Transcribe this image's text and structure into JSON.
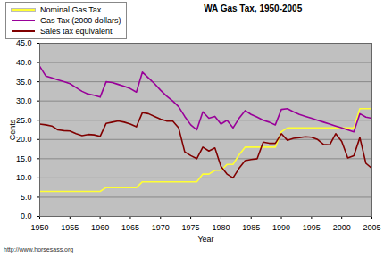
{
  "chart_data": {
    "type": "line",
    "title": "WA Gas Tax, 1950-2005",
    "x_label": "Year",
    "y_label": "Cents",
    "caption": "http://www.horsesass.org",
    "x": [
      1950,
      1951,
      1952,
      1953,
      1954,
      1955,
      1956,
      1957,
      1958,
      1959,
      1960,
      1961,
      1962,
      1963,
      1964,
      1965,
      1966,
      1967,
      1968,
      1969,
      1970,
      1971,
      1972,
      1973,
      1974,
      1975,
      1976,
      1977,
      1978,
      1979,
      1980,
      1981,
      1982,
      1983,
      1984,
      1985,
      1986,
      1987,
      1988,
      1989,
      1990,
      1991,
      1992,
      1993,
      1994,
      1995,
      1996,
      1997,
      1998,
      1999,
      2000,
      2001,
      2002,
      2003,
      2004,
      2005
    ],
    "xlim": [
      1950,
      2005
    ],
    "xticks": [
      1950,
      1955,
      1960,
      1965,
      1970,
      1975,
      1980,
      1985,
      1990,
      1995,
      2000,
      2005
    ],
    "ylim": [
      0,
      45
    ],
    "yticks": [
      {
        "value": 0,
        "label": "0.0"
      },
      {
        "value": 5,
        "label": "5.0"
      },
      {
        "value": 10,
        "label": "10.0"
      },
      {
        "value": 15,
        "label": "15.0"
      },
      {
        "value": 20,
        "label": "20.0"
      },
      {
        "value": 25,
        "label": "25.0"
      },
      {
        "value": 30,
        "label": "30.0"
      },
      {
        "value": 35,
        "label": "35.0"
      },
      {
        "value": 40,
        "label": "40.0"
      },
      {
        "value": 45,
        "label": "45.0"
      }
    ],
    "grid": true,
    "legend": "top-left",
    "series": [
      {
        "name": "Nominal Gas Tax",
        "color": "#ffff33",
        "values": [
          6.5,
          6.5,
          6.5,
          6.5,
          6.5,
          6.5,
          6.5,
          6.5,
          6.5,
          6.5,
          6.5,
          7.5,
          7.5,
          7.5,
          7.5,
          7.5,
          7.5,
          9,
          9,
          9,
          9,
          9,
          9,
          9,
          9,
          9,
          9,
          11,
          11,
          12,
          12,
          13.5,
          13.5,
          16,
          18,
          18,
          18,
          18,
          18,
          18,
          22,
          23,
          23,
          23,
          23,
          23,
          23,
          23,
          23,
          23,
          23,
          23,
          23,
          28,
          28,
          28
        ]
      },
      {
        "name": "Gas Tax (2000 dollars)",
        "color": "#990099",
        "values": [
          39,
          36.5,
          36,
          35.5,
          35,
          34.5,
          33.5,
          32.5,
          31.8,
          31.5,
          31,
          35,
          34.8,
          34.3,
          33.8,
          33.2,
          32.3,
          37.5,
          36,
          34.5,
          32.8,
          31.3,
          30,
          28.5,
          26,
          23.8,
          22.5,
          27.2,
          25.5,
          26,
          24,
          25,
          23,
          25.5,
          27.5,
          26.5,
          25.8,
          25,
          24.5,
          23.8,
          27.8,
          28,
          27.2,
          26.5,
          26,
          25.5,
          25,
          24.5,
          24,
          23.5,
          23,
          22.5,
          22,
          26.7,
          25.8,
          25.5
        ]
      },
      {
        "name": "Sales tax equivalent",
        "color": "#800000",
        "values": [
          24,
          23.8,
          23.5,
          22.5,
          22.3,
          22.2,
          21.5,
          21,
          21.3,
          21.2,
          20.8,
          24.2,
          24.5,
          24.8,
          24.5,
          24,
          23.3,
          27,
          26.7,
          26,
          25.3,
          24.8,
          24.8,
          23,
          16.8,
          15.8,
          15,
          18,
          17,
          17.8,
          13,
          11,
          10,
          12.5,
          14.5,
          14.8,
          15,
          19.3,
          19,
          19,
          21.5,
          19.8,
          20.3,
          20.5,
          20.7,
          20.6,
          20,
          18.7,
          18.6,
          21.5,
          19.5,
          15.2,
          15.8,
          20.5,
          13.8,
          12.5
        ]
      }
    ]
  }
}
